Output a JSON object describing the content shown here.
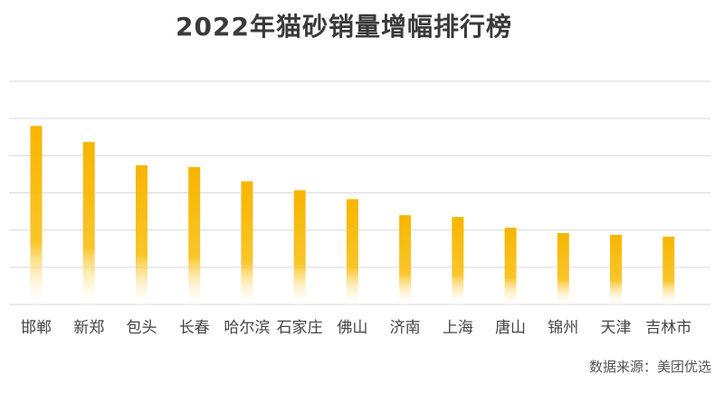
{
  "chart_data": {
    "type": "bar",
    "title": "2022年猫砂销量增幅排行榜",
    "categories": [
      "邯郸",
      "新郑",
      "包头",
      "长春",
      "哈尔滨",
      "石家庄",
      "佛山",
      "济南",
      "上海",
      "唐山",
      "锦州",
      "天津",
      "吉林市"
    ],
    "values": [
      100,
      91,
      78,
      77,
      69,
      64,
      59,
      50,
      49,
      43,
      40,
      39,
      38
    ],
    "ylim": [
      0,
      125
    ],
    "grid": true,
    "bar_color": "#F7B500",
    "xlabel": "",
    "ylabel": ""
  },
  "source": "数据来源：美团优选"
}
